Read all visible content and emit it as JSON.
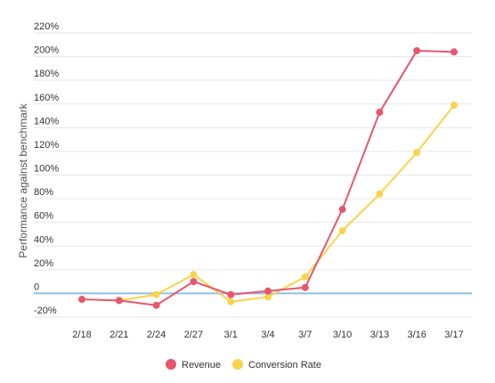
{
  "chart_data": {
    "type": "line",
    "title": "",
    "xlabel": "",
    "ylabel": "Performance against benchmark",
    "categories": [
      "2/18",
      "2/21",
      "2/24",
      "2/27",
      "3/1",
      "3/4",
      "3/7",
      "3/10",
      "3/13",
      "3/16",
      "3/17"
    ],
    "y_ticks": [
      "-20%",
      "0",
      "20%",
      "40%",
      "60%",
      "80%",
      "100%",
      "120%",
      "140%",
      "160%",
      "180%",
      "200%",
      "220%"
    ],
    "ylim": [
      -20,
      220
    ],
    "grid": true,
    "legend_position": "bottom",
    "series": [
      {
        "name": "Revenue",
        "color": "#e8566e",
        "values": [
          -5,
          -6,
          -10,
          10,
          -1,
          2,
          5,
          71,
          153,
          205,
          204
        ]
      },
      {
        "name": "Conversion Rate",
        "color": "#f7d44c",
        "values": [
          -5,
          -6,
          -1,
          16,
          -7,
          -3,
          14,
          53,
          84,
          119,
          159
        ]
      }
    ]
  }
}
